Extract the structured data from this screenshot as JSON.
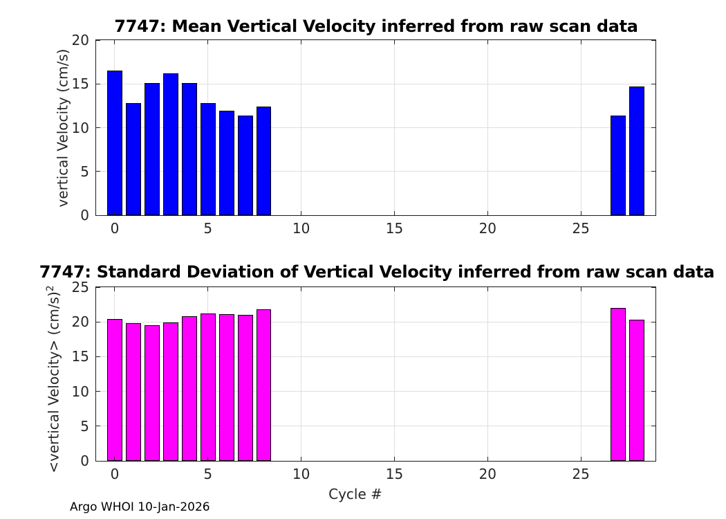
{
  "figure": {
    "footer": "Argo WHOI 10-Jan-2026"
  },
  "chart_data": [
    {
      "type": "bar",
      "title": "7747: Mean Vertical Velocity inferred from raw scan data",
      "ylabel": "vertical Velocity (cm/s)",
      "ylabel_sup": "",
      "xlabel": "",
      "x": [
        0,
        1,
        2,
        3,
        4,
        5,
        6,
        7,
        8,
        27,
        28
      ],
      "values": [
        16.5,
        12.8,
        15.1,
        16.2,
        15.1,
        12.8,
        11.9,
        11.4,
        12.4,
        11.4,
        14.7
      ],
      "bar_color": "#0000ff",
      "bar_edge_color": "#000000",
      "bar_width": 0.8,
      "xlim": [
        -1,
        29
      ],
      "ylim": [
        0,
        20
      ],
      "xticks": [
        0,
        5,
        10,
        15,
        20,
        25
      ],
      "yticks": [
        0,
        5,
        10,
        15,
        20
      ],
      "grid": true,
      "legend": null
    },
    {
      "type": "bar",
      "title": "7747: Standard Deviation of Vertical Velocity inferred from raw scan data",
      "ylabel": "<vertical Velocity> (cm/s)",
      "ylabel_sup": "2",
      "xlabel": "Cycle #",
      "x": [
        0,
        1,
        2,
        3,
        4,
        5,
        6,
        7,
        8,
        27,
        28
      ],
      "values": [
        20.4,
        19.8,
        19.5,
        19.9,
        20.8,
        21.2,
        21.1,
        21.0,
        21.8,
        22.0,
        20.3
      ],
      "bar_color": "#ff00ff",
      "bar_edge_color": "#000000",
      "bar_width": 0.8,
      "xlim": [
        -1,
        29
      ],
      "ylim": [
        0,
        25
      ],
      "xticks": [
        0,
        5,
        10,
        15,
        20,
        25
      ],
      "yticks": [
        0,
        5,
        10,
        15,
        20,
        25
      ],
      "grid": true,
      "legend": null
    }
  ]
}
